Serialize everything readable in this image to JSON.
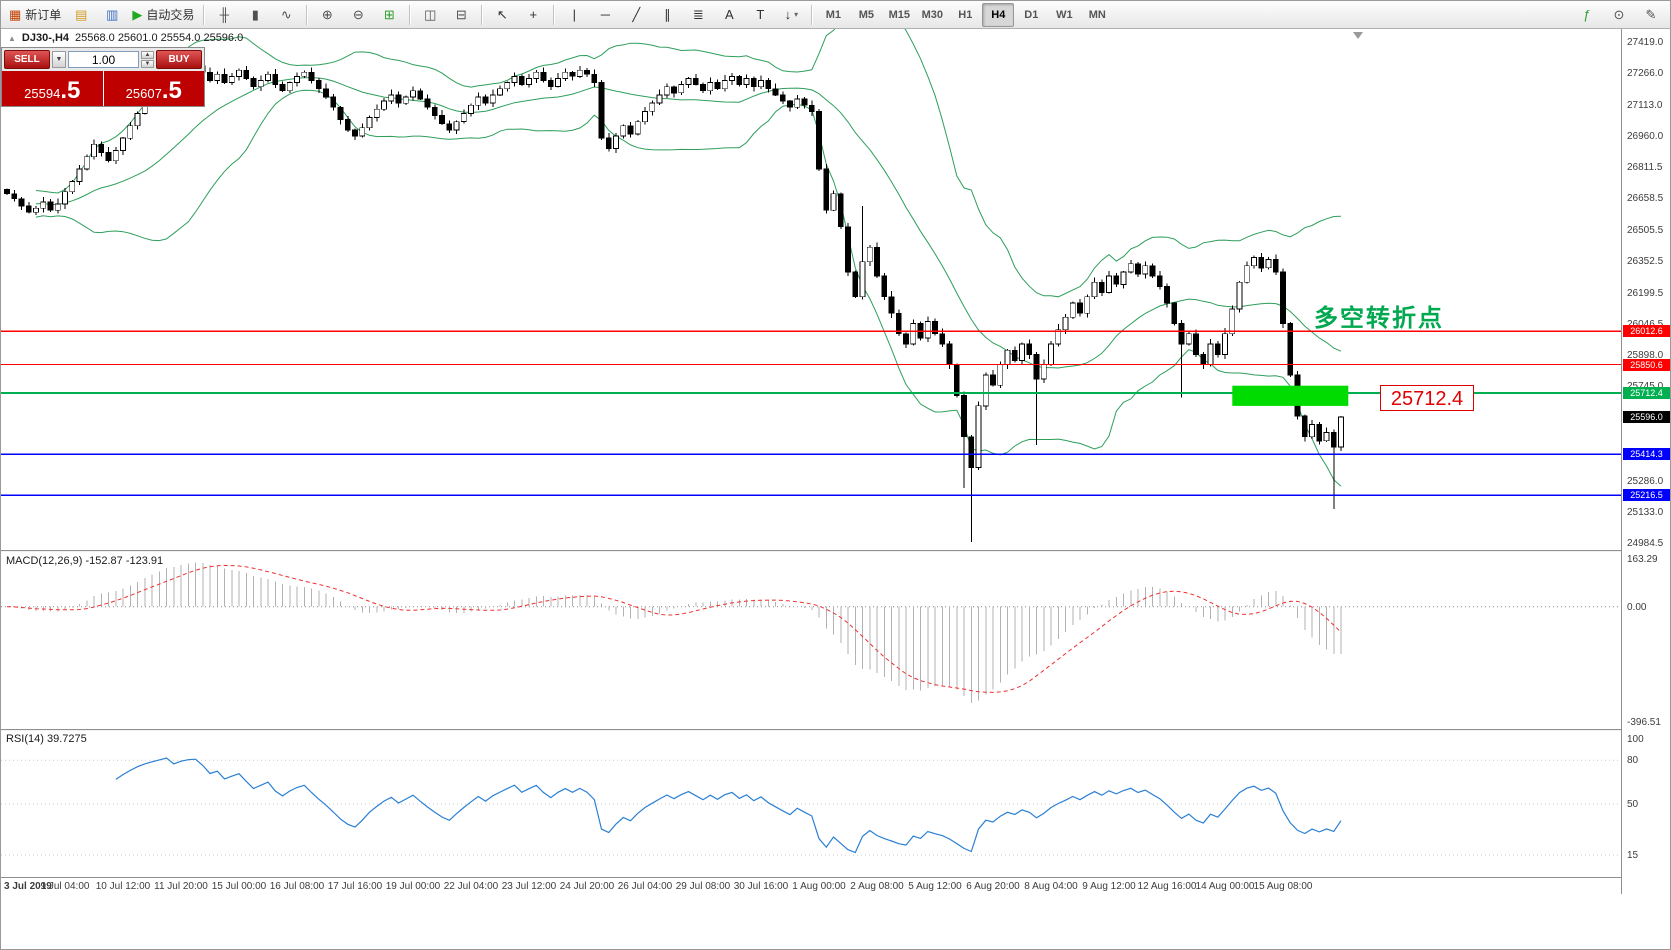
{
  "toolbar": {
    "items": [
      {
        "name": "new-order-button",
        "glyph": "▦",
        "glyph_color": "#c04000",
        "label": "新订单"
      },
      {
        "name": "market-watch-button",
        "glyph": "▤",
        "glyph_color": "#d09a20"
      },
      {
        "name": "data-window-button",
        "glyph": "▥",
        "glyph_color": "#3a6fc4"
      },
      {
        "name": "auto-trading-button",
        "glyph": "▶",
        "glyph_color": "#1faa1f",
        "label": "自动交易"
      },
      {
        "divider": true
      },
      {
        "name": "bar-chart-button",
        "glyph": "╫",
        "glyph_color": "#505050"
      },
      {
        "name": "candlestick-chart-button",
        "glyph": "▮",
        "glyph_color": "#505050"
      },
      {
        "name": "line-chart-button",
        "glyph": "∿",
        "glyph_color": "#505050"
      },
      {
        "divider": true
      },
      {
        "name": "zoom-in-button",
        "glyph": "⊕",
        "glyph_color": "#505050"
      },
      {
        "name": "zoom-out-button",
        "glyph": "⊖",
        "glyph_color": "#505050"
      },
      {
        "name": "grid-button",
        "glyph": "⊞",
        "glyph_color": "#2f9e2f"
      },
      {
        "divider": true
      },
      {
        "name": "tile-windows-button",
        "glyph": "◫",
        "glyph_color": "#505050"
      },
      {
        "name": "cascade-windows-button",
        "glyph": "⊟",
        "glyph_color": "#505050"
      },
      {
        "divider": true
      },
      {
        "name": "cursor-button",
        "glyph": "↖",
        "glyph_color": "#303030"
      },
      {
        "name": "crosshair-button",
        "glyph": "+",
        "glyph_color": "#303030"
      },
      {
        "divider": true
      },
      {
        "name": "vertical-line-button",
        "glyph": "|",
        "glyph_color": "#303030"
      },
      {
        "name": "horizontal-line-button",
        "glyph": "─",
        "glyph_color": "#303030"
      },
      {
        "name": "trendline-button",
        "glyph": "╱",
        "glyph_color": "#303030"
      },
      {
        "name": "channel-button",
        "glyph": "∥",
        "glyph_color": "#303030"
      },
      {
        "name": "fibonacci-button",
        "glyph": "≣",
        "glyph_color": "#303030"
      },
      {
        "name": "text-button",
        "glyph": "A",
        "glyph_color": "#303030"
      },
      {
        "name": "text-label-button",
        "glyph": "T",
        "glyph_color": "#303030"
      },
      {
        "name": "arrows-button",
        "glyph": "↓",
        "glyph_color": "#303030",
        "dropdown": true
      },
      {
        "divider": true
      }
    ],
    "periods": [
      "M1",
      "M5",
      "M15",
      "M30",
      "H1",
      "H4",
      "D1",
      "W1",
      "MN"
    ],
    "active_period": "H4",
    "right_items": [
      {
        "name": "indicators-button",
        "glyph": "ƒ",
        "glyph_color": "#2f9e2f"
      },
      {
        "name": "search-button",
        "glyph": "⊙",
        "glyph_color": "#505050"
      },
      {
        "name": "edit-button",
        "glyph": "✎",
        "glyph_color": "#505050"
      }
    ]
  },
  "chart_header": {
    "collapse_icon": "▲",
    "title": "DJ30-,H4",
    "ohlc": "25568.0 25601.0 25554.0 25596.0"
  },
  "trade_panel": {
    "sell_label": "SELL",
    "buy_label": "BUY",
    "volume": "1.00",
    "sell_price_small": "25594",
    "sell_price_big": ".5",
    "buy_price_small": "25607",
    "buy_price_big": ".5"
  },
  "annotations": {
    "turning_point": "多空转折点",
    "callout_price": "25712.4"
  },
  "levels": {
    "red": [
      26012.6,
      25850.6
    ],
    "green": [
      25712.4
    ],
    "blue": [
      25414.3,
      25216.5
    ],
    "current": 25596.0,
    "red_color": "#ff0000",
    "green_color": "#00b050",
    "blue_color": "#0000ff",
    "current_color": "#000000"
  },
  "price_axis_labels": [
    "27419.0",
    "27266.0",
    "27113.0",
    "26960.0",
    "26811.5",
    "26658.5",
    "26505.5",
    "26352.5",
    "26199.5",
    "26046.5",
    "25898.0",
    "25745.0",
    "25286.0",
    "25133.0",
    "24984.5"
  ],
  "macd_panel": {
    "label": "MACD(12,26,9) -152.87 -123.91",
    "axis": [
      "163.29",
      "0.00",
      "-396.51"
    ]
  },
  "rsi_panel": {
    "label": "RSI(14) 39.7275",
    "axis": [
      "100",
      "80",
      "50",
      "15"
    ],
    "level_lines": [
      80,
      50,
      15
    ]
  },
  "date_axis": {
    "first": "3 Jul 2019",
    "labels": [
      "9 Jul 04:00",
      "10 Jul 12:00",
      "11 Jul 20:00",
      "15 Jul 00:00",
      "16 Jul 08:00",
      "17 Jul 16:00",
      "19 Jul 00:00",
      "22 Jul 04:00",
      "23 Jul 12:00",
      "24 Jul 20:00",
      "26 Jul 04:00",
      "29 Jul 08:00",
      "30 Jul 16:00",
      "1 Aug 00:00",
      "2 Aug 08:00",
      "5 Aug 12:00",
      "6 Aug 20:00",
      "8 Aug 04:00",
      "9 Aug 12:00",
      "12 Aug 16:00",
      "14 Aug 00:00",
      "15 Aug 08:00"
    ]
  },
  "chart_data": {
    "type": "candlestick",
    "symbol": "DJ30-",
    "timeframe": "H4",
    "current_bar": {
      "open": 25568.0,
      "high": 25601.0,
      "low": 25554.0,
      "close": 25596.0
    },
    "price_range": [
      24950,
      27480
    ],
    "first_open": 26700,
    "closes": [
      26680,
      26655,
      26620,
      26590,
      26610,
      26640,
      26600,
      26630,
      26690,
      26740,
      26800,
      26860,
      26920,
      26880,
      26840,
      26890,
      26950,
      27010,
      27070,
      27120,
      27160,
      27200,
      27240,
      27210,
      27260,
      27290,
      27300,
      27270,
      27230,
      27260,
      27220,
      27250,
      27280,
      27240,
      27200,
      27230,
      27260,
      27210,
      27180,
      27220,
      27250,
      27270,
      27230,
      27190,
      27150,
      27100,
      27040,
      26990,
      26960,
      27000,
      27050,
      27090,
      27130,
      27160,
      27120,
      27150,
      27180,
      27140,
      27100,
      27060,
      27020,
      26990,
      27030,
      27070,
      27110,
      27150,
      27120,
      27160,
      27190,
      27220,
      27250,
      27210,
      27240,
      27270,
      27230,
      27200,
      27240,
      27270,
      27250,
      27280,
      27260,
      27220,
      26950,
      26900,
      26960,
      27010,
      26970,
      27030,
      27080,
      27120,
      27160,
      27200,
      27170,
      27210,
      27240,
      27210,
      27180,
      27220,
      27190,
      27230,
      27250,
      27210,
      27240,
      27200,
      27230,
      27190,
      27160,
      27130,
      27100,
      27140,
      27110,
      27080,
      26800,
      26600,
      26680,
      26520,
      26300,
      26180,
      26350,
      26420,
      26280,
      26180,
      26100,
      26000,
      25950,
      26050,
      25980,
      26060,
      26000,
      25950,
      25850,
      25700,
      25500,
      25350,
      25650,
      25800,
      25750,
      25850,
      25920,
      25870,
      25950,
      25900,
      25780,
      25850,
      25950,
      26020,
      26080,
      26150,
      26100,
      26180,
      26250,
      26200,
      26280,
      26240,
      26300,
      26340,
      26290,
      26330,
      26280,
      26230,
      26150,
      26050,
      25950,
      26000,
      25900,
      25850,
      25950,
      25900,
      26000,
      26120,
      26250,
      26330,
      26370,
      26320,
      26360,
      26300,
      26050,
      25800,
      25600,
      25500,
      25560,
      25480,
      25520,
      25450,
      25596
    ],
    "wick_low_overrides": {
      "132": 25250,
      "133": 24990,
      "142": 25460,
      "162": 25690,
      "183": 25150
    },
    "wick_high_overrides": {
      "118": 26620
    },
    "indicators": [
      "Bollinger Bands(20,2)",
      "MACD(12,26,9)",
      "RSI(14)"
    ],
    "bollinger": {
      "period": 20,
      "deviation": 2,
      "color": "#2e9e5b"
    },
    "green_rect": {
      "bar_start": 169,
      "bar_end": 185,
      "price_top": 25748,
      "price_bottom": 25650,
      "color": "#00dc00"
    },
    "label_every_bars": 8
  }
}
